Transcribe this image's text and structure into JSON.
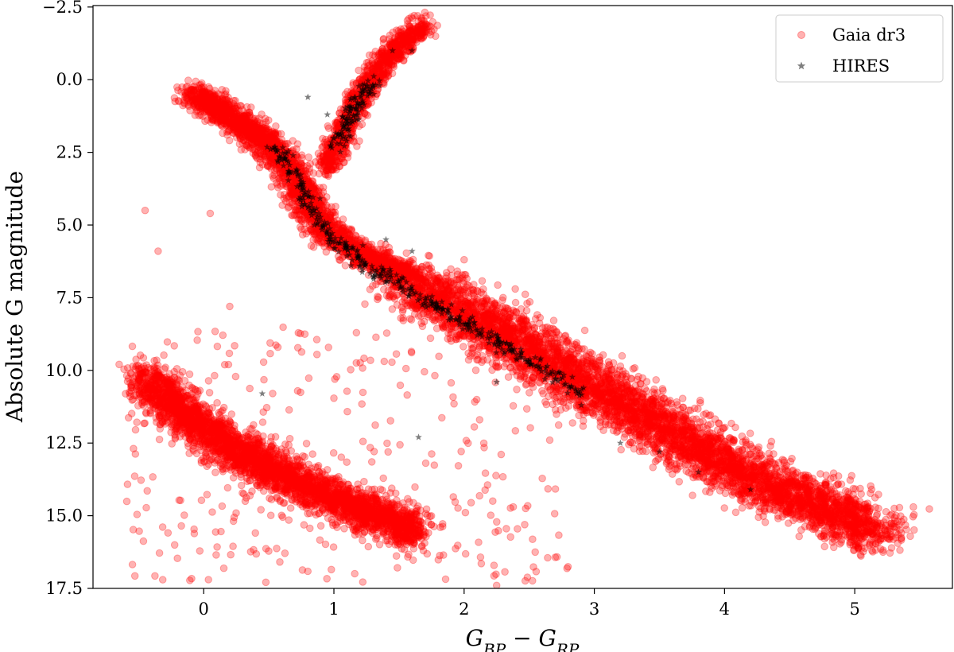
{
  "chart_data": {
    "type": "scatter",
    "xlabel": "G_BP − G_RP",
    "ylabel": "Absolute G magnitude",
    "xlim": [
      -0.85,
      5.75
    ],
    "ylim": [
      17.5,
      -2.55
    ],
    "y_inverted": true,
    "x_ticks": [
      0,
      1,
      2,
      3,
      4,
      5
    ],
    "x_tick_labels": [
      "0",
      "1",
      "2",
      "3",
      "4",
      "5"
    ],
    "y_ticks": [
      -2.5,
      0.0,
      2.5,
      5.0,
      7.5,
      10.0,
      12.5,
      15.0,
      17.5
    ],
    "y_tick_labels": [
      "−2.5",
      "0.0",
      "2.5",
      "5.0",
      "7.5",
      "10.0",
      "12.5",
      "15.0",
      "17.5"
    ],
    "grid": false,
    "legend_position": "top-right",
    "series": [
      {
        "name": "Gaia dr3",
        "marker": "circle",
        "color": "#ff0000",
        "alpha": 0.3,
        "description_points": [
          [
            -0.1,
            0.5
          ],
          [
            0.1,
            1.0
          ],
          [
            0.3,
            1.5
          ],
          [
            0.5,
            2.0
          ],
          [
            0.7,
            3.0
          ],
          [
            0.8,
            4.0
          ],
          [
            0.9,
            5.0
          ],
          [
            1.1,
            6.0
          ],
          [
            1.4,
            6.8
          ],
          [
            1.8,
            7.8
          ],
          [
            2.2,
            8.8
          ],
          [
            2.6,
            9.8
          ],
          [
            3.0,
            10.8
          ],
          [
            3.4,
            11.8
          ],
          [
            3.8,
            12.8
          ],
          [
            4.2,
            13.8
          ],
          [
            4.6,
            14.6
          ],
          [
            5.0,
            15.3
          ],
          [
            5.2,
            15.8
          ],
          [
            1.0,
            2.0
          ],
          [
            1.1,
            1.0
          ],
          [
            1.2,
            0.0
          ],
          [
            1.4,
            -0.8
          ],
          [
            1.7,
            -1.8
          ],
          [
            -0.4,
            10.5
          ],
          [
            -0.2,
            11.5
          ],
          [
            0.2,
            12.5
          ],
          [
            0.6,
            13.5
          ],
          [
            1.0,
            14.5
          ],
          [
            1.4,
            15.2
          ],
          [
            -0.45,
            4.5
          ],
          [
            -0.35,
            5.9
          ],
          [
            0.05,
            4.6
          ],
          [
            0.2,
            7.8
          ],
          [
            2.25,
            17.4
          ],
          [
            5.45,
            14.7
          ]
        ]
      },
      {
        "name": "HIRES",
        "marker": "star",
        "color": "#000000",
        "alpha": 0.5,
        "description_points": [
          [
            0.55,
            2.4
          ],
          [
            0.65,
            3.2
          ],
          [
            0.75,
            3.8
          ],
          [
            0.8,
            4.4
          ],
          [
            0.85,
            5.0
          ],
          [
            1.0,
            5.8
          ],
          [
            1.2,
            6.4
          ],
          [
            1.5,
            7.0
          ],
          [
            1.8,
            7.8
          ],
          [
            2.1,
            8.8
          ],
          [
            2.4,
            9.6
          ],
          [
            2.7,
            10.3
          ],
          [
            2.9,
            11.2
          ],
          [
            3.2,
            12.5
          ],
          [
            3.5,
            12.8
          ],
          [
            3.8,
            13.5
          ],
          [
            4.2,
            14.1
          ],
          [
            1.05,
            2.2
          ],
          [
            1.1,
            1.5
          ],
          [
            1.2,
            0.6
          ],
          [
            1.35,
            0.2
          ],
          [
            1.45,
            -1.0
          ],
          [
            1.6,
            -1.0
          ],
          [
            0.8,
            0.6
          ],
          [
            0.95,
            1.2
          ],
          [
            1.4,
            5.5
          ],
          [
            1.6,
            5.9
          ],
          [
            0.45,
            10.8
          ],
          [
            1.65,
            12.3
          ],
          [
            2.25,
            10.4
          ]
        ]
      }
    ]
  }
}
